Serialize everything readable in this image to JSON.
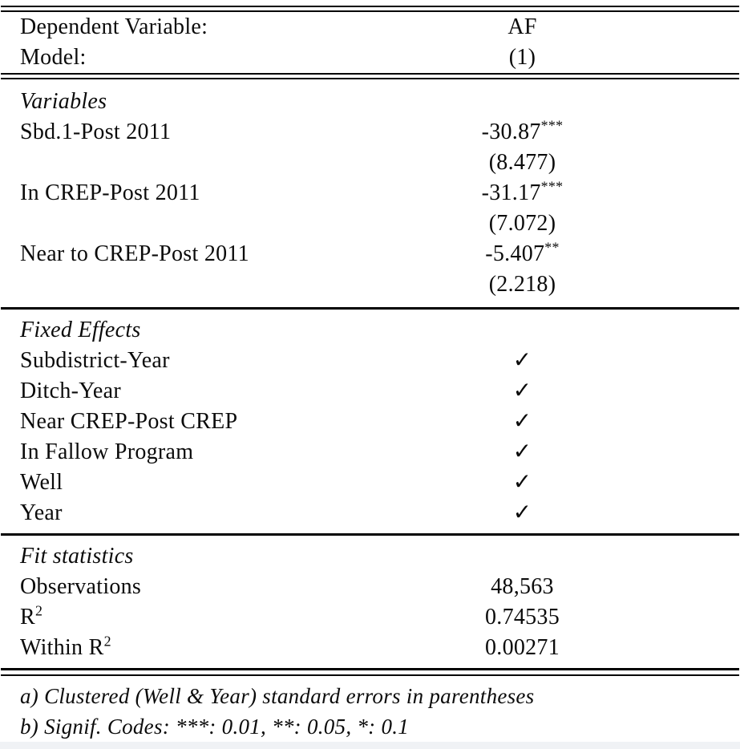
{
  "colors": {
    "background": "#ffffff",
    "text": "#0b0b0b",
    "rule": "#000000",
    "bottom_strip": "#f0f2f5"
  },
  "header": {
    "rows": [
      {
        "label": "Dependent Variable:",
        "value": "AF"
      },
      {
        "label": "Model:",
        "value": "(1)"
      }
    ]
  },
  "variables": {
    "section_title": "Variables",
    "rows": [
      {
        "label": "Sbd.1-Post 2011",
        "coef": "-30.87",
        "stars": "***",
        "se": "(8.477)"
      },
      {
        "label": "In CREP-Post 2011",
        "coef": "-31.17",
        "stars": "***",
        "se": "(7.072)"
      },
      {
        "label": "Near to CREP-Post 2011",
        "coef": "-5.407",
        "stars": "**",
        "se": "(2.218)"
      }
    ]
  },
  "fixed_effects": {
    "section_title": "Fixed Effects",
    "check_icon": "checkmark",
    "rows": [
      {
        "label": "Subdistrict-Year",
        "value": "✓"
      },
      {
        "label": "Ditch-Year",
        "value": "✓"
      },
      {
        "label": "Near CREP-Post CREP",
        "value": "✓"
      },
      {
        "label": "In Fallow Program",
        "value": "✓"
      },
      {
        "label": "Well",
        "value": "✓"
      },
      {
        "label": "Year",
        "value": "✓"
      }
    ]
  },
  "fit_statistics": {
    "section_title": "Fit statistics",
    "rows": [
      {
        "label": "Observations",
        "value": "48,563"
      },
      {
        "label": "R",
        "label_sup": "2",
        "value": "0.74535"
      },
      {
        "label": "Within R",
        "label_sup": "2",
        "value": "0.00271"
      }
    ]
  },
  "footnotes": {
    "lines": [
      "a) Clustered (Well & Year) standard errors in parentheses",
      "b) Signif. Codes: ***: 0.01, **: 0.05, *: 0.1"
    ]
  }
}
